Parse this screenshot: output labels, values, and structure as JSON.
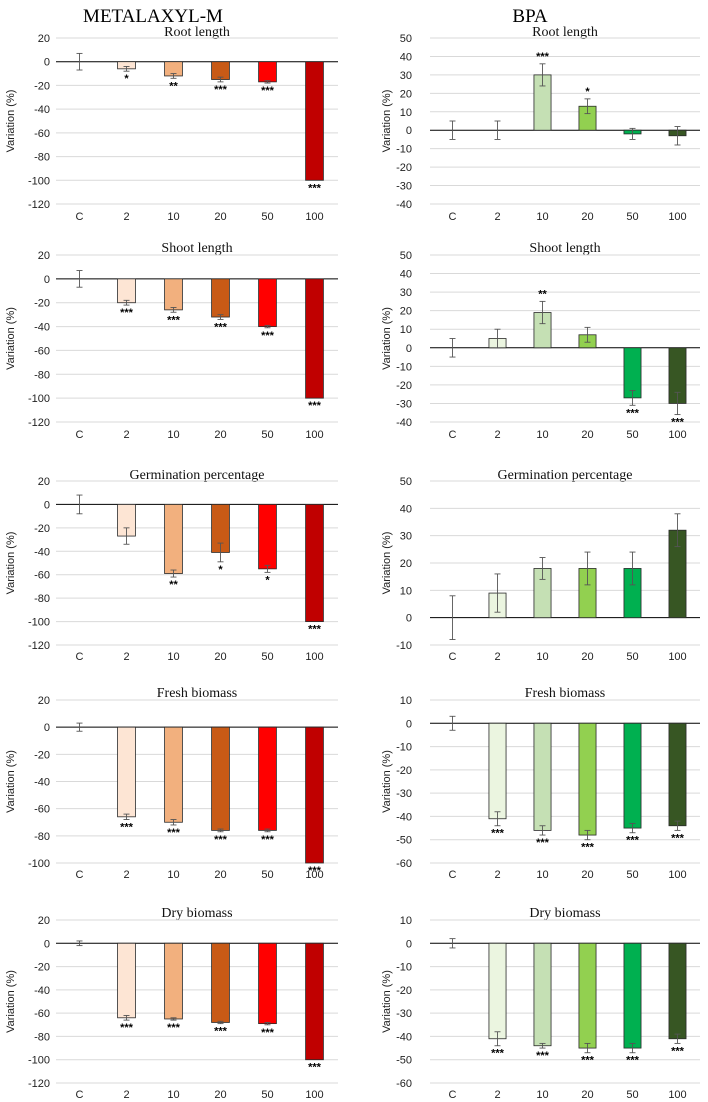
{
  "figure": {
    "left_title": "METALAXYL-M",
    "right_title": "BPA"
  },
  "chart_data": [
    {
      "type": "bar",
      "title": "Root length",
      "ylabel": "Variation (%)",
      "xlabel": "",
      "categories": [
        "C",
        "2",
        "10",
        "20",
        "50",
        "100"
      ],
      "values": [
        0,
        -6,
        -12,
        -15,
        -17,
        -100
      ],
      "errors": [
        7,
        2,
        2,
        2,
        1,
        0
      ],
      "significance": [
        "",
        "*",
        "**",
        "***",
        "***",
        "***"
      ],
      "colors": [
        "#ffffff",
        "#fde5d4",
        "#f2b07e",
        "#c85a16",
        "#ff0000",
        "#c00000"
      ],
      "ylim": [
        -120,
        20
      ],
      "yticks": [
        20,
        0,
        -20,
        -40,
        -60,
        -80,
        -100,
        -120
      ],
      "grid": true
    },
    {
      "type": "bar",
      "title": "Root length",
      "ylabel": "Variation (%)",
      "xlabel": "",
      "categories": [
        "C",
        "2",
        "10",
        "20",
        "50",
        "100"
      ],
      "values": [
        0,
        0,
        30,
        13,
        -2,
        -3
      ],
      "errors": [
        5,
        5,
        6,
        4,
        3,
        5
      ],
      "significance": [
        "",
        "",
        "***",
        "*",
        "",
        ""
      ],
      "colors": [
        "#ffffff",
        "#ebf5e0",
        "#c5e0b4",
        "#92d050",
        "#00b050",
        "#375623"
      ],
      "ylim": [
        -40,
        50
      ],
      "yticks": [
        50,
        40,
        30,
        20,
        10,
        0,
        -10,
        -20,
        -30,
        -40
      ],
      "grid": true
    },
    {
      "type": "bar",
      "title": "Shoot length",
      "ylabel": "Variation (%)",
      "xlabel": "",
      "categories": [
        "C",
        "2",
        "10",
        "20",
        "50",
        "100"
      ],
      "values": [
        0,
        -20,
        -26,
        -32,
        -40,
        -100
      ],
      "errors": [
        7,
        2,
        2,
        2,
        1,
        0
      ],
      "significance": [
        "",
        "***",
        "***",
        "***",
        "***",
        "***"
      ],
      "colors": [
        "#ffffff",
        "#fde5d4",
        "#f2b07e",
        "#c85a16",
        "#ff0000",
        "#c00000"
      ],
      "ylim": [
        -120,
        20
      ],
      "yticks": [
        20,
        0,
        -20,
        -40,
        -60,
        -80,
        -100,
        -120
      ],
      "grid": true
    },
    {
      "type": "bar",
      "title": "Shoot length",
      "ylabel": "Variation (%)",
      "xlabel": "",
      "categories": [
        "C",
        "2",
        "10",
        "20",
        "50",
        "100"
      ],
      "values": [
        0,
        5,
        19,
        7,
        -27,
        -30
      ],
      "errors": [
        5,
        5,
        6,
        4,
        4,
        6
      ],
      "significance": [
        "",
        "",
        "**",
        "",
        "***",
        "***"
      ],
      "colors": [
        "#ffffff",
        "#ebf5e0",
        "#c5e0b4",
        "#92d050",
        "#00b050",
        "#375623"
      ],
      "ylim": [
        -40,
        50
      ],
      "yticks": [
        50,
        40,
        30,
        20,
        10,
        0,
        -10,
        -20,
        -30,
        -40
      ],
      "grid": true
    },
    {
      "type": "bar",
      "title": "Germination percentage",
      "ylabel": "Variation (%)",
      "xlabel": "",
      "categories": [
        "C",
        "2",
        "10",
        "20",
        "50",
        "100"
      ],
      "values": [
        0,
        -27,
        -59,
        -41,
        -55,
        -100
      ],
      "errors": [
        8,
        7,
        3,
        8,
        3,
        0
      ],
      "significance": [
        "",
        "",
        "**",
        "*",
        "*",
        "***"
      ],
      "colors": [
        "#ffffff",
        "#fde5d4",
        "#f2b07e",
        "#c85a16",
        "#ff0000",
        "#c00000"
      ],
      "ylim": [
        -120,
        20
      ],
      "yticks": [
        20,
        0,
        -20,
        -40,
        -60,
        -80,
        -100,
        -120
      ],
      "grid": true
    },
    {
      "type": "bar",
      "title": "Germination percentage",
      "ylabel": "Variation (%)",
      "xlabel": "",
      "categories": [
        "C",
        "2",
        "10",
        "20",
        "50",
        "100"
      ],
      "values": [
        0,
        9,
        18,
        18,
        18,
        32
      ],
      "errors": [
        8,
        7,
        4,
        6,
        6,
        6
      ],
      "significance": [
        "",
        "",
        "",
        "",
        "",
        ""
      ],
      "colors": [
        "#ffffff",
        "#ebf5e0",
        "#c5e0b4",
        "#92d050",
        "#00b050",
        "#375623"
      ],
      "ylim": [
        -10,
        50
      ],
      "yticks": [
        50,
        40,
        30,
        20,
        10,
        0,
        -10
      ],
      "grid": true
    },
    {
      "type": "bar",
      "title": "Fresh biomass",
      "ylabel": "Variation (%)",
      "xlabel": "",
      "categories": [
        "C",
        "2",
        "10",
        "20",
        "50",
        "100"
      ],
      "values": [
        0,
        -66,
        -70,
        -76,
        -76,
        -100
      ],
      "errors": [
        3,
        2,
        2,
        1,
        1,
        0
      ],
      "significance": [
        "",
        "***",
        "***",
        "***",
        "***",
        "***"
      ],
      "colors": [
        "#ffffff",
        "#fde5d4",
        "#f2b07e",
        "#c85a16",
        "#ff0000",
        "#c00000"
      ],
      "ylim": [
        -100,
        20
      ],
      "yticks": [
        20,
        0,
        -20,
        -40,
        -60,
        -80,
        -100
      ],
      "grid": true
    },
    {
      "type": "bar",
      "title": "Fresh biomass",
      "ylabel": "Variation (%)",
      "xlabel": "",
      "categories": [
        "C",
        "2",
        "10",
        "20",
        "50",
        "100"
      ],
      "values": [
        0,
        -41,
        -46,
        -48,
        -45,
        -44
      ],
      "errors": [
        3,
        3,
        2,
        2,
        2,
        2
      ],
      "significance": [
        "",
        "***",
        "***",
        "***",
        "***",
        "***"
      ],
      "colors": [
        "#ffffff",
        "#ebf5e0",
        "#c5e0b4",
        "#92d050",
        "#00b050",
        "#375623"
      ],
      "ylim": [
        -60,
        10
      ],
      "yticks": [
        10,
        0,
        -10,
        -20,
        -30,
        -40,
        -50,
        -60
      ],
      "grid": true
    },
    {
      "type": "bar",
      "title": "Dry biomass",
      "ylabel": "Variation (%)",
      "xlabel": "",
      "categories": [
        "C",
        "2",
        "10",
        "20",
        "50",
        "100"
      ],
      "values": [
        0,
        -64,
        -65,
        -68,
        -69,
        -100
      ],
      "errors": [
        2,
        2,
        1,
        1,
        1,
        0
      ],
      "significance": [
        "",
        "***",
        "***",
        "***",
        "***",
        "***"
      ],
      "colors": [
        "#ffffff",
        "#fde5d4",
        "#f2b07e",
        "#c85a16",
        "#ff0000",
        "#c00000"
      ],
      "ylim": [
        -120,
        20
      ],
      "yticks": [
        20,
        0,
        -20,
        -40,
        -60,
        -80,
        -100,
        -120
      ],
      "grid": true
    },
    {
      "type": "bar",
      "title": "Dry biomass",
      "ylabel": "Variation (%)",
      "xlabel": "",
      "categories": [
        "C",
        "2",
        "10",
        "20",
        "50",
        "100"
      ],
      "values": [
        0,
        -41,
        -44,
        -45,
        -45,
        -41
      ],
      "errors": [
        2,
        3,
        1,
        2,
        2,
        2
      ],
      "significance": [
        "",
        "***",
        "***",
        "***",
        "***",
        "***"
      ],
      "colors": [
        "#ffffff",
        "#ebf5e0",
        "#c5e0b4",
        "#92d050",
        "#00b050",
        "#375623"
      ],
      "ylim": [
        -60,
        10
      ],
      "yticks": [
        10,
        0,
        -10,
        -20,
        -30,
        -40,
        -50,
        -60
      ],
      "grid": true
    }
  ]
}
